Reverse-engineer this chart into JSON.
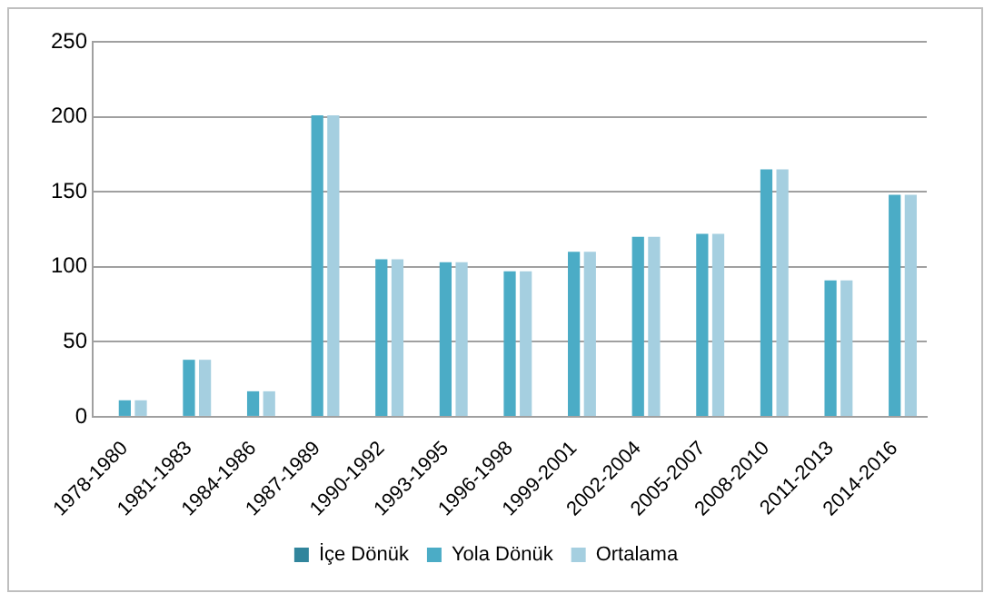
{
  "chart_data": {
    "type": "bar",
    "categories": [
      "1978-1980",
      "1981-1983",
      "1984-1986",
      "1987-1989",
      "1990-1992",
      "1993-1995",
      "1996-1998",
      "1999-2001",
      "2002-2004",
      "2005-2007",
      "2008-2010",
      "2011-2013",
      "2014-2016"
    ],
    "series": [
      {
        "name": "İçe Dönük",
        "color": "#31859c",
        "values": [
          null,
          null,
          null,
          null,
          null,
          null,
          null,
          null,
          null,
          null,
          null,
          null,
          null
        ]
      },
      {
        "name": "Yola Dönük",
        "color": "#4bacc6",
        "values": [
          11,
          38,
          17,
          201,
          105,
          103,
          97,
          110,
          120,
          122,
          165,
          91,
          148
        ]
      },
      {
        "name": "Ortalama",
        "color": "#a5cfe0",
        "values": [
          11,
          38,
          17,
          201,
          105,
          103,
          97,
          110,
          120,
          122,
          165,
          91,
          148
        ]
      }
    ],
    "ylim": [
      0,
      250
    ],
    "yticks": [
      0,
      50,
      100,
      150,
      200,
      250
    ],
    "grid": "y",
    "legend": "bottom"
  }
}
